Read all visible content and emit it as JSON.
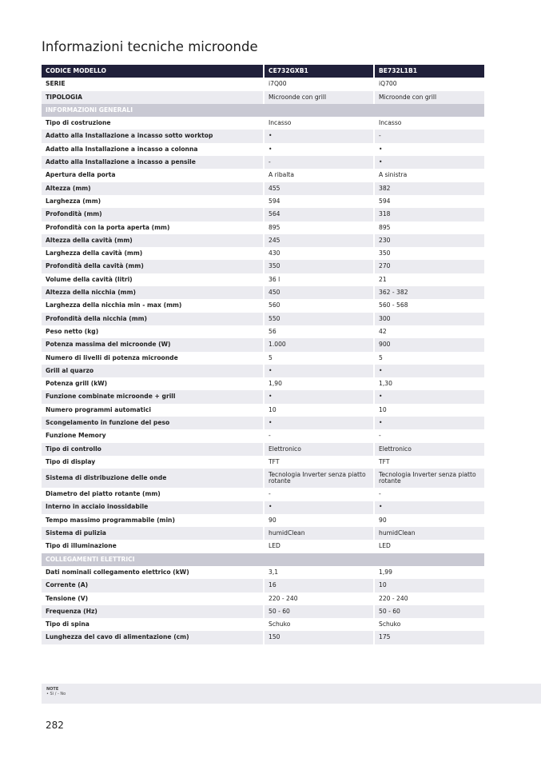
{
  "title": "Informazioni tecniche microonde",
  "header": {
    "label": "CODICE MODELLO",
    "col1": "CE732GXB1",
    "col2": "BE732L1B1"
  },
  "rows": [
    {
      "type": "row",
      "label": "SERIE",
      "a": "i7Q00",
      "b": "iQ700"
    },
    {
      "type": "row",
      "label": "TIPOLOGIA",
      "a": "Microonde con grill",
      "b": "Microonde con grill"
    },
    {
      "type": "section",
      "label": "INFORMAZIONI GENERALI"
    },
    {
      "type": "row",
      "label": "Tipo di costruzione",
      "a": "Incasso",
      "b": "Incasso"
    },
    {
      "type": "row",
      "label": "Adatto alla Installazione a incasso sotto worktop",
      "a": "•",
      "b": "-"
    },
    {
      "type": "row",
      "label": "Adatto alla Installazione a incasso a colonna",
      "a": "•",
      "b": "•"
    },
    {
      "type": "row",
      "label": "Adatto alla Installazione a incasso a pensile",
      "a": "-",
      "b": "•"
    },
    {
      "type": "row",
      "label": "Apertura della porta",
      "a": "A ribalta",
      "b": "A sinistra"
    },
    {
      "type": "row",
      "label": "Altezza (mm)",
      "a": "455",
      "b": "382"
    },
    {
      "type": "row",
      "label": "Larghezza (mm)",
      "a": "594",
      "b": "594"
    },
    {
      "type": "row",
      "label": "Profondità (mm)",
      "a": "564",
      "b": "318"
    },
    {
      "type": "row",
      "label": "Profondità con la porta aperta (mm)",
      "a": "895",
      "b": "895"
    },
    {
      "type": "row",
      "label": "Altezza della cavità (mm)",
      "a": "245",
      "b": "230"
    },
    {
      "type": "row",
      "label": "Larghezza della cavità (mm)",
      "a": "430",
      "b": "350"
    },
    {
      "type": "row",
      "label": "Profondità della cavità (mm)",
      "a": "350",
      "b": "270"
    },
    {
      "type": "row",
      "label": "Volume della cavità (litri)",
      "a": "36 l",
      "b": "21"
    },
    {
      "type": "row",
      "label": "Altezza della nicchia (mm)",
      "a": "450",
      "b": "362 - 382"
    },
    {
      "type": "row",
      "label": "Larghezza della nicchia min - max (mm)",
      "a": "560",
      "b": "560 - 568"
    },
    {
      "type": "row",
      "label": "Profondità della nicchia (mm)",
      "a": "550",
      "b": "300"
    },
    {
      "type": "row",
      "label": "Peso netto (kg)",
      "a": "56",
      "b": "42"
    },
    {
      "type": "row",
      "label": "Potenza massima del microonde (W)",
      "a": "1.000",
      "b": "900"
    },
    {
      "type": "row",
      "label": "Numero di livelli di potenza microonde",
      "a": "5",
      "b": "5"
    },
    {
      "type": "row",
      "label": "Grill al quarzo",
      "a": "•",
      "b": "•"
    },
    {
      "type": "row",
      "label": "Potenza grill (kW)",
      "a": "1,90",
      "b": "1,30"
    },
    {
      "type": "row",
      "label": "Funzione combinate microonde + grill",
      "a": "•",
      "b": "•"
    },
    {
      "type": "row",
      "label": "Numero programmi automatici",
      "a": "10",
      "b": "10"
    },
    {
      "type": "row",
      "label": "Scongelamento in funzione del peso",
      "a": "•",
      "b": "•"
    },
    {
      "type": "row",
      "label": "Funzione Memory",
      "a": "-",
      "b": "-"
    },
    {
      "type": "row",
      "label": "Tipo di controllo",
      "a": "Elettronico",
      "b": "Elettronico"
    },
    {
      "type": "row",
      "label": "Tipo di display",
      "a": "TFT",
      "b": "TFT"
    },
    {
      "type": "tall",
      "label": "Sistema di distribuzione delle onde",
      "a": "Tecnologia Inverter senza piatto rotante",
      "b": "Tecnologia Inverter senza piatto rotante"
    },
    {
      "type": "row",
      "label": "Diametro del piatto rotante (mm)",
      "a": "-",
      "b": "-"
    },
    {
      "type": "row",
      "label": "Interno in acciaio inossidabile",
      "a": "•",
      "b": "•"
    },
    {
      "type": "row",
      "label": "Tempo massimo programmabile (min)",
      "a": "90",
      "b": "90"
    },
    {
      "type": "row",
      "label": "Sistema di pulizia",
      "a": "humidClean",
      "b": "humidClean"
    },
    {
      "type": "row",
      "label": "Tipo di illuminazione",
      "a": "LED",
      "b": "LED"
    },
    {
      "type": "section",
      "label": "COLLEGAMENTI ELETTRICI"
    },
    {
      "type": "row",
      "label": "Dati nominali collegamento elettrico (kW)",
      "a": "3,1",
      "b": "1,99"
    },
    {
      "type": "row",
      "label": "Corrente (A)",
      "a": "16",
      "b": "10"
    },
    {
      "type": "row",
      "label": "Tensione (V)",
      "a": "220 - 240",
      "b": "220 - 240"
    },
    {
      "type": "row",
      "label": "Frequenza (Hz)",
      "a": "50 - 60",
      "b": "50 - 60"
    },
    {
      "type": "row",
      "label": "Tipo di spina",
      "a": "Schuko",
      "b": "Schuko"
    },
    {
      "type": "row",
      "label": "Lunghezza del cavo di alimentazione (cm)",
      "a": "150",
      "b": "175"
    }
  ],
  "note": {
    "title": "NOTE",
    "text": "• Sì / - No"
  },
  "page_number": "282"
}
